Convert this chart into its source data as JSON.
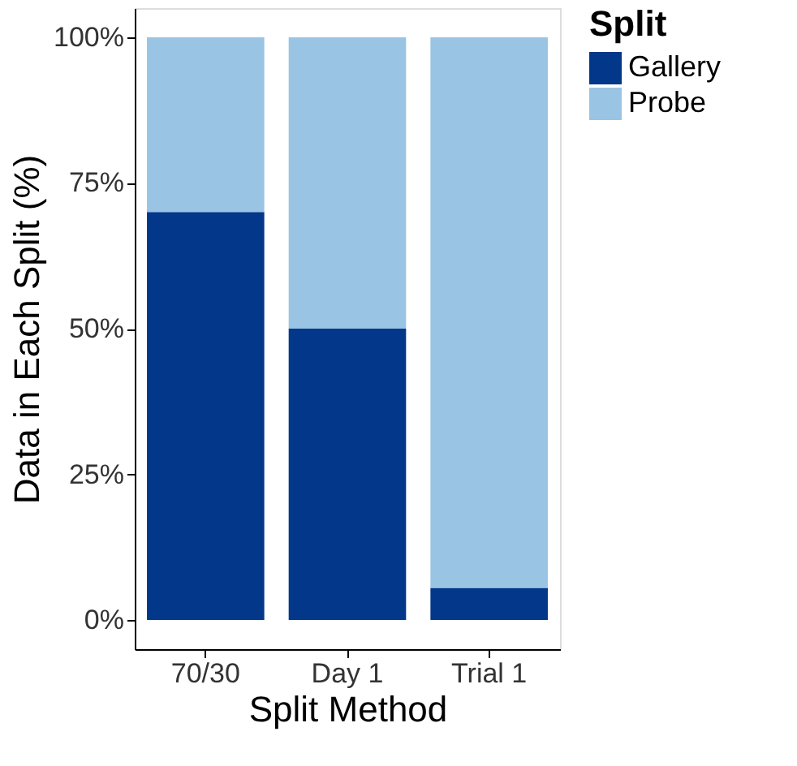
{
  "chart_data": {
    "type": "bar",
    "stacked": true,
    "xlabel": "Split Method",
    "ylabel": "Data in Each Split (%)",
    "legend_title": "Split",
    "legend": "right",
    "grid": false,
    "categories": [
      "70/30",
      "Day 1",
      "Trial 1"
    ],
    "series": [
      {
        "name": "Gallery",
        "color": "#02378a",
        "values": [
          70,
          50,
          5.5
        ]
      },
      {
        "name": "Probe",
        "color": "#9ac4e3",
        "values": [
          30,
          50,
          94.5
        ]
      }
    ],
    "ylim": [
      -5,
      105
    ],
    "yticks": [
      {
        "value": 0,
        "label": "0%"
      },
      {
        "value": 25,
        "label": "25%"
      },
      {
        "value": 50,
        "label": "50%"
      },
      {
        "value": 75,
        "label": "75%"
      },
      {
        "value": 100,
        "label": "100%"
      }
    ]
  }
}
